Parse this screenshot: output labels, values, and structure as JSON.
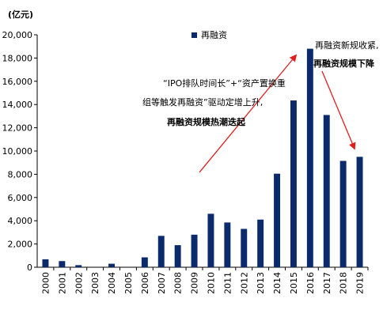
{
  "chart_data": {
    "type": "bar",
    "unit_label": "(亿元)",
    "legend": {
      "label": "再融资",
      "position": "top-center",
      "color": "#0b2a6b"
    },
    "categories": [
      "2000",
      "2001",
      "2002",
      "2003",
      "2004",
      "2005",
      "2006",
      "2007",
      "2008",
      "2009",
      "2010",
      "2011",
      "2012",
      "2013",
      "2014",
      "2015",
      "2016",
      "2017",
      "2018",
      "2019"
    ],
    "series": [
      {
        "name": "再融资",
        "values": [
          680,
          530,
          180,
          0,
          300,
          0,
          850,
          2700,
          1900,
          2800,
          4600,
          3850,
          3300,
          4100,
          8050,
          14350,
          18800,
          13100,
          9150,
          9500
        ]
      }
    ],
    "ylim": [
      0,
      20000
    ],
    "yticks": [
      "0",
      "2,000",
      "4,000",
      "6,000",
      "8,000",
      "10,000",
      "12,000",
      "14,000",
      "16,000",
      "18,000",
      "20,000"
    ],
    "grid": false,
    "bar_color": "#0b2a6b",
    "annotations": [
      {
        "id": "left",
        "lines": [
          "“IPO排队时间长”+“资产置换重",
          "组等触发再融资”驱动定增上升,",
          "再融资规模热潮迭起"
        ]
      },
      {
        "id": "right",
        "lines": [
          "再融资新规收紧,",
          "再融资规模下降"
        ]
      }
    ],
    "arrow_color": "#e02020"
  }
}
